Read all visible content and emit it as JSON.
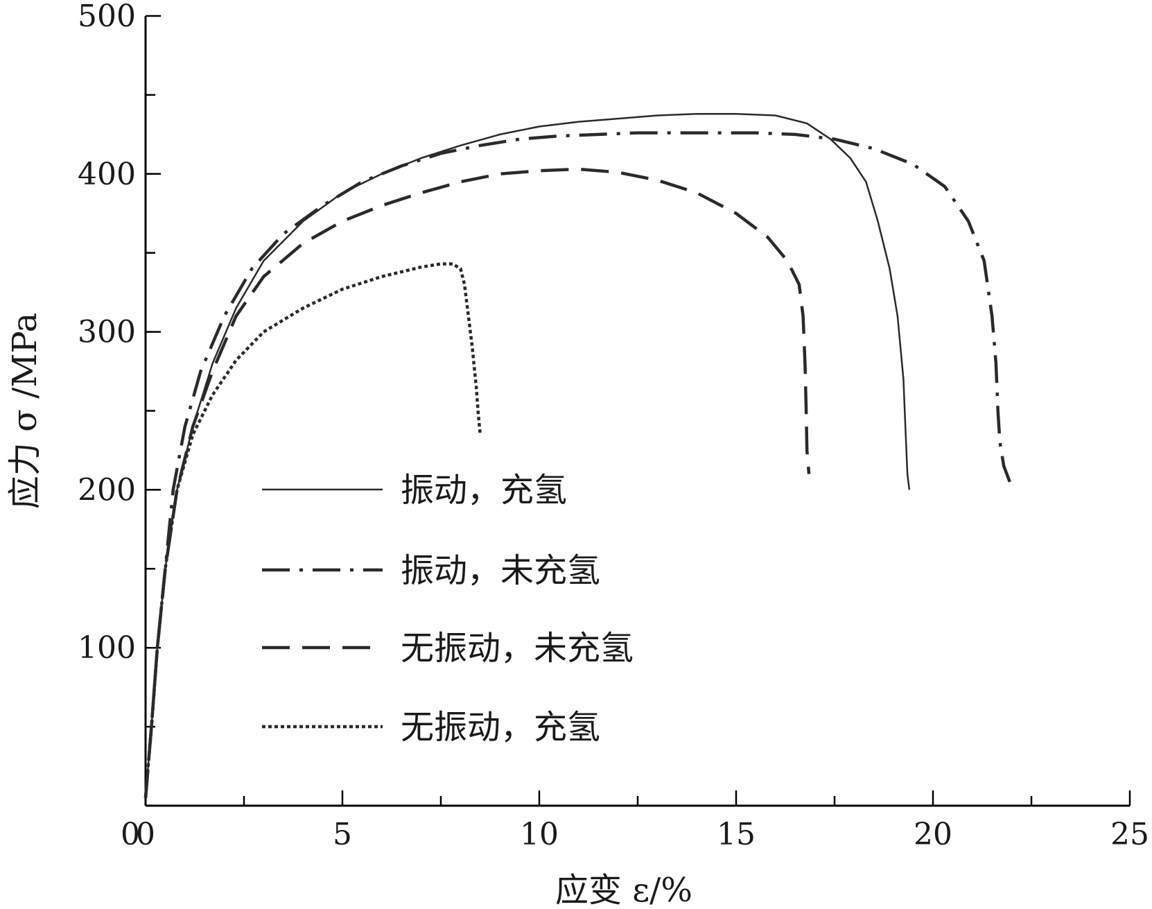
{
  "chart_data": {
    "type": "line",
    "xlabel": "应变 ε/%",
    "ylabel": "应力 σ /MPa",
    "xlim": [
      0,
      25
    ],
    "ylim": [
      0,
      500
    ],
    "xticks": [
      0,
      5,
      10,
      15,
      20,
      25
    ],
    "yticks": [
      100,
      200,
      300,
      400,
      500
    ],
    "grid": false,
    "legend_position": "center",
    "series": [
      {
        "name": "振动，充氢",
        "style": "solid",
        "x": [
          0,
          0.15,
          0.3,
          0.5,
          0.8,
          1.2,
          1.7,
          2.3,
          3.0,
          4.0,
          5.0,
          6.0,
          7.0,
          8.0,
          9.0,
          10.0,
          11.0,
          12.0,
          13.0,
          14.0,
          15.0,
          16.0,
          16.8,
          17.4,
          17.9,
          18.3,
          18.6,
          18.9,
          19.1,
          19.25,
          19.3,
          19.35,
          19.4
        ],
        "y": [
          5,
          50,
          100,
          150,
          200,
          240,
          280,
          315,
          345,
          370,
          388,
          400,
          410,
          418,
          425,
          430,
          433,
          435,
          437,
          438,
          438,
          437,
          432,
          422,
          410,
          395,
          370,
          340,
          310,
          270,
          240,
          210,
          200
        ]
      },
      {
        "name": "振动，未充氢",
        "style": "dashdot",
        "x": [
          0,
          0.15,
          0.3,
          0.5,
          0.7,
          1.0,
          1.4,
          2.0,
          2.7,
          3.5,
          4.5,
          5.5,
          6.5,
          7.5,
          8.5,
          9.5,
          10.5,
          11.5,
          12.5,
          13.5,
          14.5,
          15.5,
          16.5,
          17.5,
          18.5,
          19.5,
          20.3,
          20.9,
          21.3,
          21.5,
          21.6,
          21.65,
          21.7,
          21.8,
          21.95
        ],
        "y": [
          5,
          50,
          100,
          150,
          200,
          240,
          275,
          310,
          340,
          362,
          380,
          395,
          405,
          413,
          418,
          422,
          424,
          425,
          426,
          426,
          426,
          426,
          425,
          422,
          416,
          406,
          392,
          370,
          345,
          310,
          280,
          250,
          230,
          215,
          205
        ]
      },
      {
        "name": "无振动，未充氢",
        "style": "dashed",
        "x": [
          0,
          0.15,
          0.3,
          0.5,
          0.8,
          1.2,
          1.7,
          2.3,
          3.0,
          4.0,
          5.0,
          6.0,
          7.0,
          8.0,
          9.0,
          10.0,
          11.0,
          12.0,
          13.0,
          14.0,
          15.0,
          15.8,
          16.3,
          16.6,
          16.7,
          16.75,
          16.78,
          16.8,
          16.85
        ],
        "y": [
          5,
          50,
          100,
          150,
          200,
          240,
          275,
          310,
          335,
          356,
          370,
          380,
          388,
          395,
          400,
          402,
          403,
          401,
          396,
          388,
          375,
          360,
          345,
          330,
          310,
          280,
          250,
          225,
          210
        ]
      },
      {
        "name": "无振动，充氢",
        "style": "dotted",
        "x": [
          0,
          0.15,
          0.3,
          0.5,
          0.8,
          1.2,
          1.7,
          2.3,
          3.0,
          4.0,
          5.0,
          6.0,
          7.0,
          7.5,
          7.8,
          8.0,
          8.1,
          8.2,
          8.3,
          8.4,
          8.45,
          8.5
        ],
        "y": [
          5,
          50,
          100,
          150,
          200,
          235,
          260,
          282,
          300,
          315,
          327,
          335,
          341,
          343,
          343,
          340,
          330,
          310,
          290,
          265,
          248,
          235
        ]
      }
    ]
  }
}
